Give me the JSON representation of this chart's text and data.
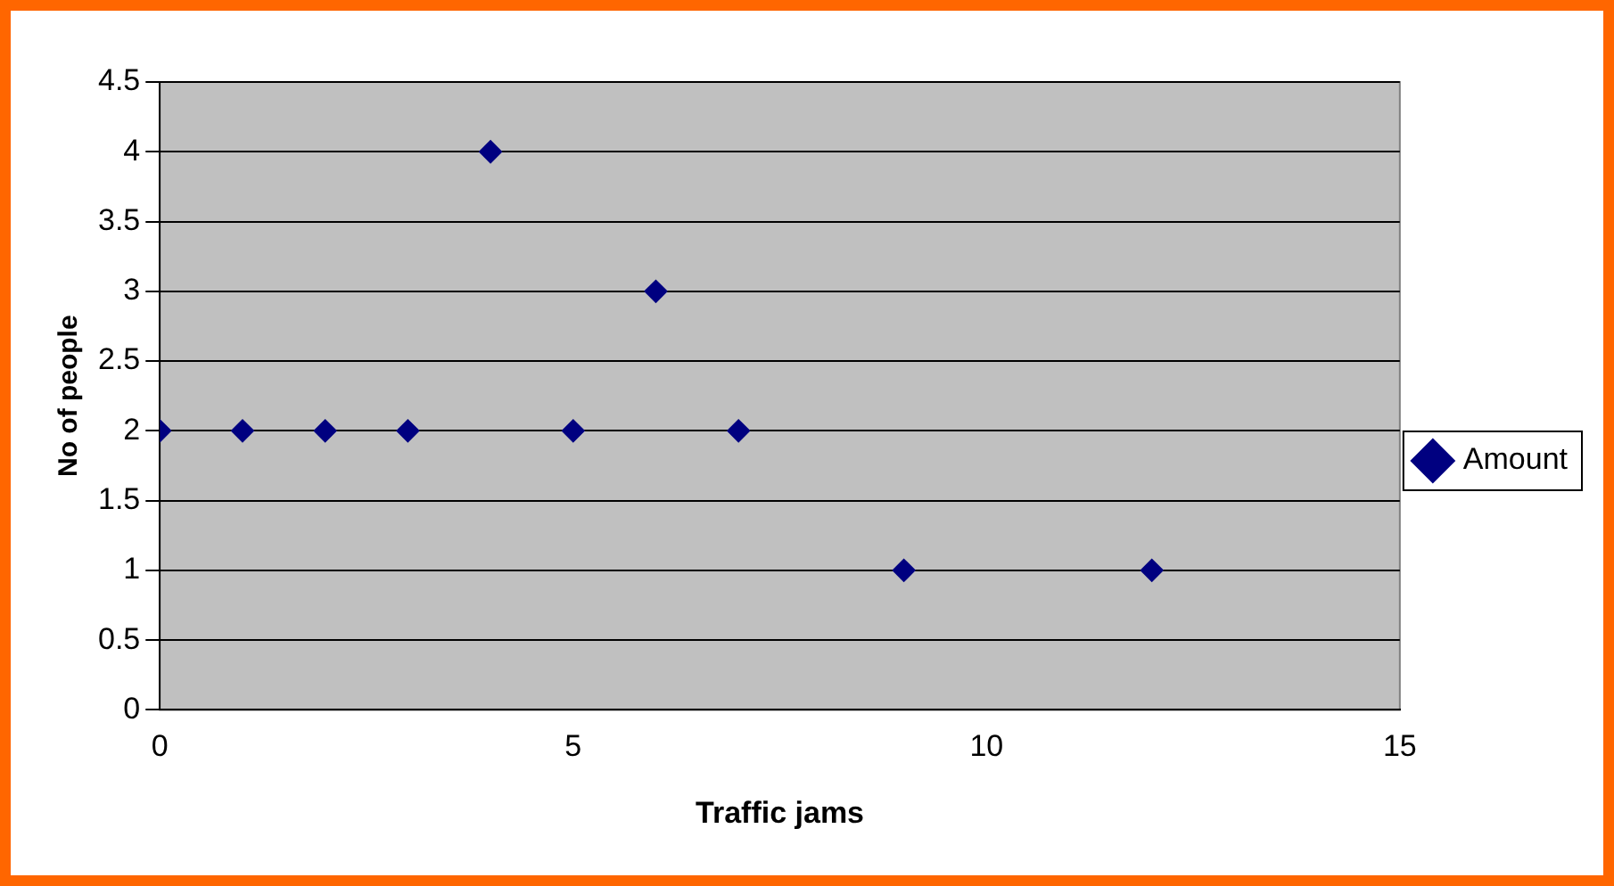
{
  "chart_data": {
    "type": "scatter",
    "xlabel": "Traffic jams",
    "ylabel": "No of people",
    "x": [
      0,
      1,
      2,
      3,
      4,
      5,
      6,
      7,
      9,
      12
    ],
    "series": [
      {
        "name": "Amount",
        "color": "#000080",
        "values": [
          2,
          2,
          2,
          2,
          4,
          2,
          3,
          2,
          1,
          1
        ]
      }
    ],
    "xlim": [
      0,
      15
    ],
    "xticks": [
      0,
      5,
      10,
      15
    ],
    "ylim": [
      0,
      4.5
    ],
    "yticks": [
      0,
      0.5,
      1,
      1.5,
      2,
      2.5,
      3,
      3.5,
      4,
      4.5
    ],
    "grid": "y",
    "legend": "right",
    "marker": "diamond"
  }
}
